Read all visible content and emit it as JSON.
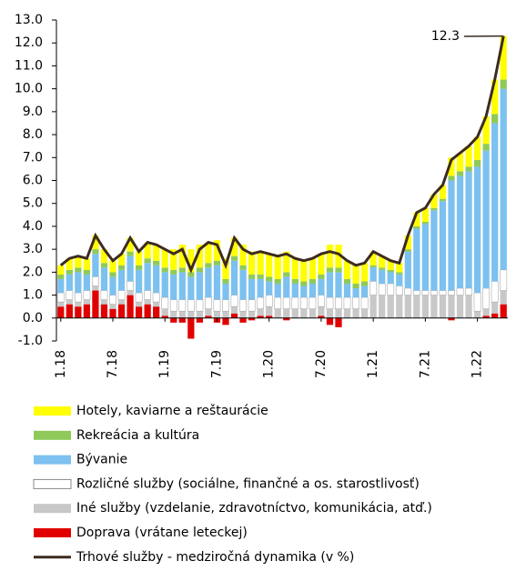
{
  "chart_data": {
    "type": "bar",
    "stacked": true,
    "categories": [
      "1.18",
      null,
      null,
      null,
      null,
      null,
      "7.18",
      null,
      null,
      null,
      null,
      null,
      "1.19",
      null,
      null,
      null,
      null,
      null,
      "7.19",
      null,
      null,
      null,
      null,
      null,
      "1.20",
      null,
      null,
      null,
      null,
      null,
      "7.20",
      null,
      null,
      null,
      null,
      null,
      "1.21",
      null,
      null,
      null,
      null,
      null,
      "7.21",
      null,
      null,
      null,
      null,
      null,
      "1.22",
      null,
      null,
      null
    ],
    "series": [
      {
        "name": "Hotely, kaviarne a reštaurácie",
        "color": "#ffff00",
        "values": [
          0.4,
          0.5,
          0.5,
          0.5,
          0.6,
          0.6,
          0.5,
          0.5,
          0.6,
          0.6,
          0.7,
          0.7,
          0.8,
          0.9,
          1.0,
          1.0,
          1.0,
          0.9,
          0.9,
          0.9,
          0.8,
          0.9,
          1.0,
          1.0,
          1.0,
          1.0,
          0.9,
          0.9,
          0.9,
          0.9,
          0.9,
          1.0,
          1.0,
          0.8,
          0.8,
          0.8,
          0.6,
          0.5,
          0.4,
          0.4,
          0.6,
          0.6,
          0.6,
          0.6,
          0.6,
          0.8,
          0.8,
          0.9,
          1.0,
          1.2,
          1.5,
          1.9
        ]
      },
      {
        "name": "Rekreácia a kultúra",
        "color": "#8fc95a",
        "values": [
          0.2,
          0.2,
          0.2,
          0.2,
          0.2,
          0.2,
          0.2,
          0.2,
          0.2,
          0.2,
          0.2,
          0.2,
          0.2,
          0.2,
          0.2,
          0.2,
          0.2,
          0.2,
          0.2,
          0.2,
          0.2,
          0.2,
          0.2,
          0.2,
          0.2,
          0.2,
          0.2,
          0.2,
          0.2,
          0.2,
          0.2,
          0.2,
          0.2,
          0.2,
          0.2,
          0.2,
          0.1,
          0.1,
          0.1,
          0.1,
          0.1,
          0.1,
          0.1,
          0.1,
          0.1,
          0.2,
          0.2,
          0.2,
          0.3,
          0.3,
          0.4,
          0.4
        ]
      },
      {
        "name": "Bývanie",
        "color": "#7cc1ef",
        "values": [
          0.6,
          0.7,
          0.9,
          0.7,
          1.0,
          1.0,
          0.8,
          0.9,
          1.1,
          1.0,
          1.2,
          1.2,
          1.1,
          1.1,
          1.2,
          1.0,
          1.2,
          1.3,
          1.5,
          0.7,
          1.5,
          1.3,
          0.9,
          0.8,
          0.6,
          0.6,
          0.9,
          0.6,
          0.5,
          0.6,
          0.7,
          1.1,
          1.1,
          0.6,
          0.4,
          0.5,
          0.6,
          0.6,
          0.5,
          0.5,
          1.6,
          2.7,
          2.9,
          3.5,
          3.9,
          4.8,
          4.9,
          5.1,
          5.5,
          6.0,
          6.9,
          7.9
        ]
      },
      {
        "name": "Rozličné služby (sociálne, finančné a os. starostlivosť)",
        "color": "#ffffff",
        "values": [
          0.4,
          0.4,
          0.4,
          0.4,
          0.4,
          0.4,
          0.4,
          0.4,
          0.4,
          0.4,
          0.4,
          0.4,
          0.5,
          0.5,
          0.5,
          0.5,
          0.5,
          0.5,
          0.5,
          0.5,
          0.5,
          0.5,
          0.5,
          0.5,
          0.5,
          0.5,
          0.5,
          0.5,
          0.5,
          0.5,
          0.5,
          0.5,
          0.5,
          0.5,
          0.5,
          0.5,
          0.6,
          0.5,
          0.5,
          0.4,
          0.3,
          0.2,
          0.2,
          0.2,
          0.2,
          0.2,
          0.3,
          0.3,
          0.8,
          0.9,
          0.9,
          0.9
        ]
      },
      {
        "name": "Iné služby (vzdelanie, zdravotníctvo, komunikácia, atď.)",
        "color": "#c8c8c8",
        "values": [
          0.2,
          0.2,
          0.2,
          0.2,
          0.2,
          0.2,
          0.2,
          0.2,
          0.2,
          0.2,
          0.2,
          0.2,
          0.3,
          0.3,
          0.3,
          0.3,
          0.3,
          0.3,
          0.3,
          0.3,
          0.3,
          0.3,
          0.3,
          0.3,
          0.4,
          0.4,
          0.4,
          0.4,
          0.4,
          0.4,
          0.4,
          0.4,
          0.4,
          0.4,
          0.4,
          0.4,
          1.0,
          1.0,
          1.0,
          1.0,
          1.0,
          1.0,
          1.0,
          1.0,
          1.0,
          1.0,
          1.0,
          1.0,
          0.3,
          0.3,
          0.5,
          0.6
        ]
      },
      {
        "name": "Doprava (vrátane leteckej)",
        "color": "#e00000",
        "values": [
          0.5,
          0.6,
          0.5,
          0.6,
          1.2,
          0.6,
          0.4,
          0.6,
          1.0,
          0.5,
          0.6,
          0.5,
          0.1,
          -0.2,
          -0.2,
          -0.9,
          -0.2,
          0.1,
          -0.2,
          -0.3,
          0.2,
          -0.2,
          -0.1,
          0.1,
          0.1,
          0.0,
          -0.1,
          0.0,
          0.0,
          0.0,
          0.1,
          -0.3,
          -0.4,
          0.0,
          0.0,
          0.0,
          0,
          0,
          0,
          0,
          0,
          0,
          0,
          0,
          0,
          -0.1,
          0,
          0,
          0,
          0.1,
          0.2,
          0.6
        ]
      },
      {
        "name": "Trhové služby - medziročná dynamika (v %)",
        "color": "#3d2b1f",
        "type": "line",
        "values": [
          2.3,
          2.6,
          2.7,
          2.6,
          3.6,
          3.0,
          2.5,
          2.8,
          3.5,
          2.9,
          3.3,
          3.2,
          3.0,
          2.8,
          3.0,
          2.1,
          3.0,
          3.3,
          3.2,
          2.3,
          3.5,
          3.0,
          2.8,
          2.9,
          2.8,
          2.7,
          2.8,
          2.6,
          2.5,
          2.6,
          2.8,
          2.9,
          2.8,
          2.5,
          2.3,
          2.4,
          2.9,
          2.7,
          2.5,
          2.4,
          3.6,
          4.6,
          4.8,
          5.4,
          5.8,
          6.9,
          7.2,
          7.5,
          7.9,
          8.8,
          10.4,
          12.3
        ]
      }
    ],
    "ylim": [
      -1,
      13
    ],
    "yticks": [
      {
        "value": -1,
        "label": "-1.0"
      },
      {
        "value": 0,
        "label": "0.0"
      },
      {
        "value": 1,
        "label": "1.0"
      },
      {
        "value": 2,
        "label": "2.0"
      },
      {
        "value": 3,
        "label": "3.0"
      },
      {
        "value": 4,
        "label": "4.0"
      },
      {
        "value": 5,
        "label": "5.0"
      },
      {
        "value": 6,
        "label": "6.0"
      },
      {
        "value": 7,
        "label": "7.0"
      },
      {
        "value": 8,
        "label": "8.0"
      },
      {
        "value": 9,
        "label": "9.0"
      },
      {
        "value": 10,
        "label": "10.0"
      },
      {
        "value": 11,
        "label": "11.0"
      },
      {
        "value": 12,
        "label": "12.0"
      },
      {
        "value": 13,
        "label": "13.0"
      }
    ],
    "legend": "bottom"
  }
}
